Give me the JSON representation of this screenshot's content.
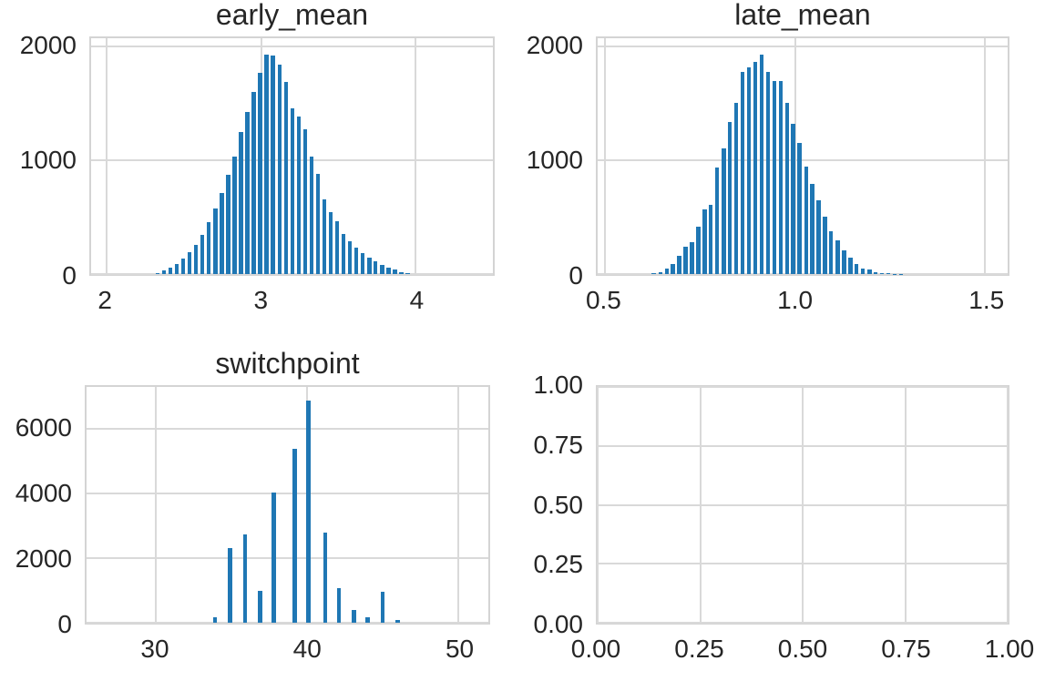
{
  "style": {
    "bar_color": "#1f77b4",
    "grid_color": "#d9d9d9",
    "spine_color": "#d4d4d4",
    "text_color": "#262626",
    "background": "#ffffff"
  },
  "chart_data": [
    {
      "id": "early_mean",
      "type": "bar",
      "title": "early_mean",
      "xlabel": "",
      "ylabel": "",
      "grid": true,
      "legend": null,
      "xlim": [
        1.9,
        4.5
      ],
      "ylim": [
        0,
        2075
      ],
      "xticks": [
        2,
        3,
        4
      ],
      "xtick_labels": [
        "2",
        "3",
        "4"
      ],
      "yticks": [
        0,
        1000,
        2000
      ],
      "ytick_labels": [
        "0",
        "1000",
        "2000"
      ],
      "bar_width": 0.026,
      "x": [
        2.33,
        2.372,
        2.413,
        2.455,
        2.496,
        2.538,
        2.579,
        2.621,
        2.662,
        2.704,
        2.745,
        2.787,
        2.828,
        2.87,
        2.911,
        2.953,
        2.994,
        3.036,
        3.077,
        3.119,
        3.16,
        3.202,
        3.243,
        3.285,
        3.326,
        3.368,
        3.409,
        3.451,
        3.492,
        3.534,
        3.575,
        3.617,
        3.658,
        3.7,
        3.741,
        3.783,
        3.824,
        3.866,
        3.907,
        3.949
      ],
      "values": [
        10,
        30,
        55,
        90,
        135,
        190,
        260,
        345,
        455,
        580,
        710,
        870,
        1030,
        1250,
        1430,
        1600,
        1770,
        1930,
        1920,
        1840,
        1690,
        1460,
        1390,
        1275,
        1030,
        880,
        660,
        545,
        462,
        350,
        285,
        230,
        182,
        143,
        110,
        82,
        58,
        38,
        20,
        10
      ]
    },
    {
      "id": "late_mean",
      "type": "bar",
      "title": "late_mean",
      "xlabel": "",
      "ylabel": "",
      "grid": true,
      "legend": null,
      "xlim": [
        0.48,
        1.56
      ],
      "ylim": [
        0,
        2075
      ],
      "xticks": [
        0.5,
        1.0,
        1.5
      ],
      "xtick_labels": [
        "0.5",
        "1.0",
        "1.5"
      ],
      "yticks": [
        0,
        1000,
        2000
      ],
      "ytick_labels": [
        "0",
        "1000",
        "2000"
      ],
      "bar_width": 0.0105,
      "x": [
        0.628,
        0.645,
        0.662,
        0.678,
        0.695,
        0.712,
        0.728,
        0.745,
        0.762,
        0.778,
        0.795,
        0.812,
        0.828,
        0.845,
        0.862,
        0.879,
        0.895,
        0.912,
        0.929,
        0.945,
        0.962,
        0.979,
        0.995,
        1.012,
        1.029,
        1.045,
        1.062,
        1.079,
        1.095,
        1.112,
        1.129,
        1.146,
        1.162,
        1.179,
        1.196,
        1.212,
        1.229,
        1.246,
        1.262,
        1.279
      ],
      "values": [
        12,
        18,
        50,
        90,
        158,
        242,
        278,
        415,
        570,
        610,
        940,
        1106,
        1340,
        1505,
        1775,
        1820,
        1868,
        1930,
        1778,
        1700,
        1702,
        1505,
        1320,
        1152,
        943,
        790,
        646,
        504,
        376,
        297,
        208,
        142,
        90,
        52,
        40,
        18,
        10,
        6,
        4,
        2
      ]
    },
    {
      "id": "switchpoint",
      "type": "bar",
      "title": "switchpoint",
      "xlabel": "",
      "ylabel": "",
      "grid": true,
      "legend": null,
      "xlim": [
        25.4,
        52.0
      ],
      "ylim": [
        0,
        7300
      ],
      "xticks": [
        30,
        40,
        50
      ],
      "xtick_labels": [
        "30",
        "40",
        "50"
      ],
      "yticks": [
        0,
        2000,
        4000,
        6000
      ],
      "ytick_labels": [
        "0",
        "2000",
        "4000",
        "6000"
      ],
      "bar_width": 0.28,
      "x": [
        33.9,
        34.9,
        35.9,
        36.9,
        37.8,
        39.2,
        40.1,
        41.2,
        42.1,
        43.1,
        44.0,
        45.0,
        46.0
      ],
      "values": [
        160,
        2310,
        2730,
        990,
        4020,
        5370,
        6870,
        2780,
        1070,
        390,
        160,
        960,
        90
      ]
    },
    {
      "id": "empty-axes",
      "type": "empty",
      "title": "",
      "xlabel": "",
      "ylabel": "",
      "grid": true,
      "legend": null,
      "xlim": [
        0,
        1
      ],
      "ylim": [
        0,
        1
      ],
      "xticks": [
        0,
        0.25,
        0.5,
        0.75,
        1
      ],
      "xtick_labels": [
        "0.00",
        "0.25",
        "0.50",
        "0.75",
        "1.00"
      ],
      "yticks": [
        0,
        0.25,
        0.5,
        0.75,
        1
      ],
      "ytick_labels": [
        "0.00",
        "0.25",
        "0.50",
        "0.75",
        "1.00"
      ],
      "bar_width": 0,
      "x": [],
      "values": []
    }
  ]
}
